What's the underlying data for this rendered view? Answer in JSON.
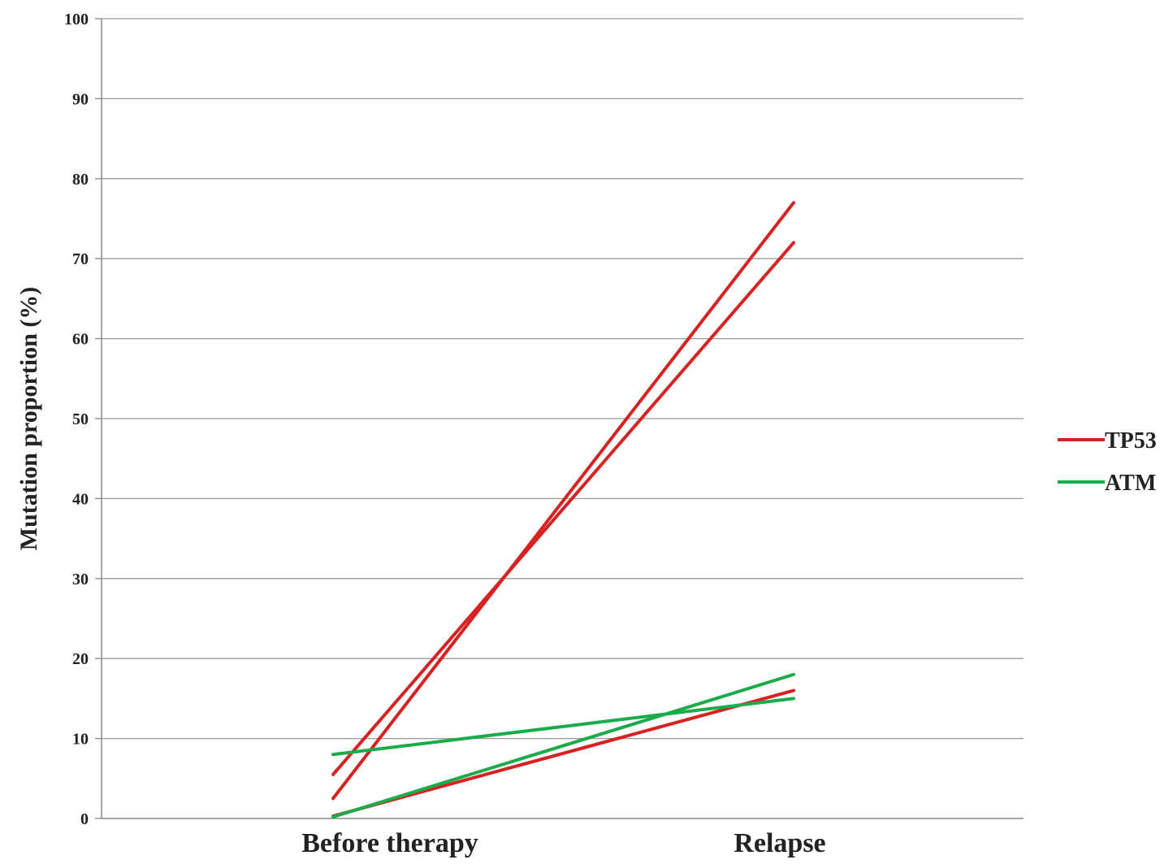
{
  "chart_data": {
    "type": "line",
    "title": "",
    "xlabel": "",
    "ylabel": "Mutation proportion (%)",
    "categories": [
      "Before therapy",
      "Relapse"
    ],
    "ylim": [
      0,
      100
    ],
    "yticks": [
      0,
      10,
      20,
      30,
      40,
      50,
      60,
      70,
      80,
      90,
      100
    ],
    "grid": true,
    "legend_position": "right",
    "legend": [
      {
        "name": "TP53",
        "color": "#d62222"
      },
      {
        "name": "ATM",
        "color": "#1aab4a"
      }
    ],
    "series": [
      {
        "gene": "TP53",
        "color": "#d62222",
        "values": [
          5.5,
          72
        ]
      },
      {
        "gene": "TP53",
        "color": "#d62222",
        "values": [
          2.5,
          77
        ]
      },
      {
        "gene": "TP53",
        "color": "#d62222",
        "values": [
          0.3,
          16
        ]
      },
      {
        "gene": "ATM",
        "color": "#1aab4a",
        "values": [
          8,
          15
        ]
      },
      {
        "gene": "ATM",
        "color": "#1aab4a",
        "values": [
          0.2,
          18
        ]
      }
    ]
  }
}
